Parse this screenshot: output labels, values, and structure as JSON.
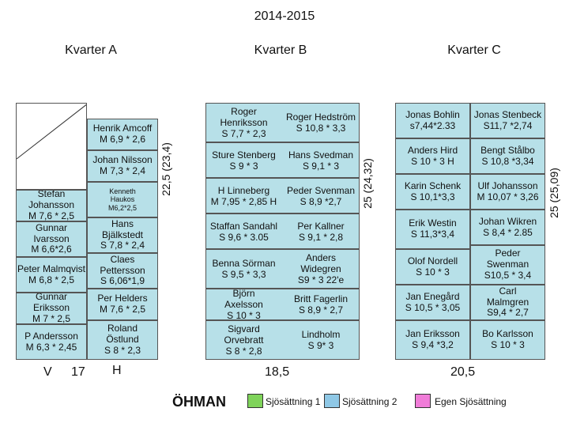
{
  "title": "2014-2015",
  "quarters": {
    "a": "Kvarter A",
    "b": "Kvarter B",
    "c": "Kvarter C"
  },
  "kvarter_a": {
    "left": [
      "Stefan Johansson\nM 7,6 * 2,5",
      "Gunnar\nIvarsson\nM 6,6*2,6",
      "Peter Malmqvist\nM 6,8 * 2,5",
      "Gunnar Eriksson\nM 7 * 2,5",
      "P Andersson\nM 6,3 * 2,45"
    ],
    "right": [
      "Henrik Amcoff\nM 6,9 * 2,6",
      "Johan Nilsson\nM 7,3 * 2,4",
      "Kenneth\nHaukos\nM6,2*2,5",
      "Hans\nBjälkstedt\nS 7,8 * 2,4",
      "Claes\nPettersson\nS 6,06*1,9",
      "Per Helders\nM 7,6 * 2,5",
      "Roland\nÖstlund\nS 8 * 2,3"
    ],
    "width_label": "22,5 (23,4)"
  },
  "kvarter_b": {
    "rows": [
      [
        "Roger\nHenriksson\nS 7,7 * 2,3",
        "Roger Hedström\nS 10,8 * 3,3"
      ],
      [
        "Sture Stenberg\nS 9 * 3",
        "Hans Svedman\nS 9,1 * 3"
      ],
      [
        "H Linneberg\nM 7,95 * 2,85 H",
        "Peder Svenman\nS 8,9 *2,7"
      ],
      [
        "Staffan  Sandahl\nS 9,6 * 3.05",
        "Per Kallner\nS 9,1 * 2,8"
      ],
      [
        "Benna Sörman\nS 9,5 * 3,3",
        "Anders\nWidegren\nS9 * 3 22'e"
      ],
      [
        "Björn\nAxelsson\nS 10 * 3",
        "Britt Fagerlin\nS 8,9 * 2,7"
      ],
      [
        "Sigvard\nOrvebratt\nS 8 * 2,8",
        "Lindholm\nS 9* 3"
      ]
    ],
    "width_label": "25 (24,32)"
  },
  "kvarter_c": {
    "rows": [
      [
        "Jonas Bohlin\ns7,44*2.33",
        "Jonas Stenbeck\nS11,7 *2,74"
      ],
      [
        "Anders Hird\nS 10 * 3 H",
        "Bengt Stålbo\nS 10,8 *3,34"
      ],
      [
        "Karin Schenk\nS 10,1*3,3",
        "Ulf Johansson\nM 10,07 * 3,26"
      ],
      [
        "Erik Westin\nS 11,3*3,4",
        "Johan Wikren\nS 8,4 * 2.85"
      ],
      [
        "Olof Nordell\nS 10 * 3",
        "Peder\nSwenman\nS10,5 * 3,4"
      ],
      [
        "Jan Enegård\nS 10,5 * 3,05",
        "Carl\nMalmgren\nS9,4 * 2,7"
      ],
      [
        "Jan Eriksson\nS 9,4 *3,2",
        "Bo Karlsson\nS 10 * 3"
      ]
    ],
    "width_label": "25 (25,09)"
  },
  "footer": {
    "v": "V",
    "n17": "17",
    "h": "H",
    "b_width": "18,5",
    "c_width": "20,5",
    "ohman": "ÖHMAN"
  },
  "legend": [
    {
      "label": "Sjösättning 1",
      "color": "#7fd35a"
    },
    {
      "label": "Sjösättning 2",
      "color": "#8fc8e6"
    },
    {
      "label": "Egen Sjösättning",
      "color": "#f07cd8"
    }
  ],
  "cell_color": "#b7e0e8"
}
